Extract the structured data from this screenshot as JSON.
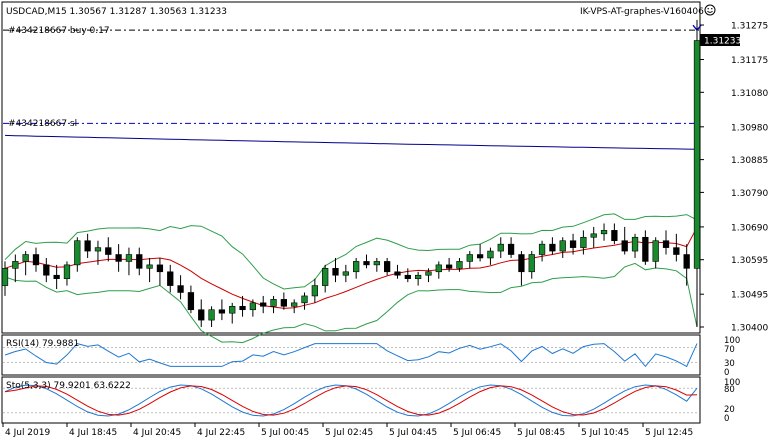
{
  "header": {
    "symbol_info": "USDCAD,M15  1.30567 1.31287 1.30563 1.31233",
    "account_label": "IK-VPS-AT-graphes-V160406",
    "smiley_icon": "smiley-icon"
  },
  "order_lines": {
    "buy_label": "#434218667 buy 0.17",
    "sl_label": "#434218667 sl",
    "buy_price": 1.3126,
    "sl_price": 1.3099,
    "line_color": "#0000cc"
  },
  "current_price": {
    "value": "1.31233",
    "tag_bg": "#000000",
    "tag_fg": "#ffffff"
  },
  "price_axis": {
    "labels": [
      "1.31275",
      "1.31175",
      "1.31080",
      "1.30980",
      "1.30885",
      "1.30790",
      "1.30690",
      "1.30595",
      "1.30495",
      "1.30400"
    ],
    "values": [
      1.31275,
      1.31175,
      1.3108,
      1.3098,
      1.30885,
      1.3079,
      1.3069,
      1.30595,
      1.30495,
      1.304
    ]
  },
  "rsi_panel": {
    "label": "RSI(14) 79.9881",
    "levels": [
      "100",
      "70",
      "30",
      "0"
    ],
    "line_color": "#1e78d2"
  },
  "stoch_panel": {
    "label": "Sto(5,3,3) 79.9201 63.6222",
    "levels": [
      "100",
      "80",
      "20",
      "0"
    ],
    "main_color": "#1e78d2",
    "signal_color": "#dd0000"
  },
  "time_axis": {
    "labels": [
      "4 Jul 2019",
      "4 Jul 18:45",
      "4 Jul 20:45",
      "4 Jul 22:45",
      "5 Jul 00:45",
      "5 Jul 02:45",
      "5 Jul 04:45",
      "5 Jul 06:45",
      "5 Jul 08:45",
      "5 Jul 10:45",
      "5 Jul 12:45"
    ]
  },
  "chart_data": {
    "type": "candlestick",
    "title": "USDCAD,M15",
    "ohlc_header": {
      "open": 1.30567,
      "high": 1.31287,
      "low": 1.30563,
      "close": 1.31233
    },
    "ylim": [
      1.3037,
      1.3133
    ],
    "candles": [
      [
        1.3052,
        1.3059,
        1.3049,
        1.3057
      ],
      [
        1.3057,
        1.3061,
        1.3053,
        1.3059
      ],
      [
        1.3059,
        1.3062,
        1.3055,
        1.3061
      ],
      [
        1.3061,
        1.3063,
        1.3056,
        1.3058
      ],
      [
        1.3058,
        1.306,
        1.3053,
        1.3055
      ],
      [
        1.3055,
        1.3058,
        1.3051,
        1.3054
      ],
      [
        1.3054,
        1.3059,
        1.3052,
        1.3058
      ],
      [
        1.3058,
        1.3066,
        1.3056,
        1.3065
      ],
      [
        1.3065,
        1.3067,
        1.306,
        1.3062
      ],
      [
        1.3062,
        1.3065,
        1.3058,
        1.3063
      ],
      [
        1.3063,
        1.3066,
        1.3059,
        1.3061
      ],
      [
        1.3061,
        1.3064,
        1.3056,
        1.3059
      ],
      [
        1.3059,
        1.3063,
        1.3055,
        1.3061
      ],
      [
        1.3061,
        1.3063,
        1.3055,
        1.3057
      ],
      [
        1.3057,
        1.306,
        1.3053,
        1.3058
      ],
      [
        1.3058,
        1.306,
        1.3052,
        1.3056
      ],
      [
        1.3056,
        1.3058,
        1.305,
        1.3052
      ],
      [
        1.3052,
        1.3055,
        1.3048,
        1.305
      ],
      [
        1.305,
        1.3052,
        1.3044,
        1.3045
      ],
      [
        1.3045,
        1.3048,
        1.304,
        1.3042
      ],
      [
        1.3042,
        1.3046,
        1.304,
        1.3045
      ],
      [
        1.3045,
        1.3048,
        1.3042,
        1.3044
      ],
      [
        1.3044,
        1.3047,
        1.3041,
        1.3046
      ],
      [
        1.3046,
        1.3049,
        1.3043,
        1.3045
      ],
      [
        1.3045,
        1.3048,
        1.3043,
        1.3047
      ],
      [
        1.3047,
        1.3049,
        1.3044,
        1.3046
      ],
      [
        1.3046,
        1.3049,
        1.3044,
        1.3048
      ],
      [
        1.3048,
        1.305,
        1.3045,
        1.3046
      ],
      [
        1.3046,
        1.3048,
        1.3044,
        1.3047
      ],
      [
        1.3047,
        1.305,
        1.3045,
        1.3049
      ],
      [
        1.3049,
        1.3054,
        1.3047,
        1.3052
      ],
      [
        1.3052,
        1.3058,
        1.305,
        1.3057
      ],
      [
        1.3057,
        1.306,
        1.3053,
        1.3055
      ],
      [
        1.3055,
        1.3058,
        1.3053,
        1.3056
      ],
      [
        1.3056,
        1.306,
        1.3054,
        1.3059
      ],
      [
        1.3059,
        1.3061,
        1.3057,
        1.3058
      ],
      [
        1.3058,
        1.306,
        1.3056,
        1.3059
      ],
      [
        1.3059,
        1.306,
        1.3055,
        1.3056
      ],
      [
        1.3056,
        1.3058,
        1.3054,
        1.3055
      ],
      [
        1.3055,
        1.3057,
        1.3053,
        1.3054
      ],
      [
        1.3054,
        1.3056,
        1.3052,
        1.3055
      ],
      [
        1.3055,
        1.3057,
        1.3053,
        1.3056
      ],
      [
        1.3056,
        1.3059,
        1.3054,
        1.3058
      ],
      [
        1.3058,
        1.306,
        1.3056,
        1.3057
      ],
      [
        1.3057,
        1.306,
        1.3056,
        1.3059
      ],
      [
        1.3059,
        1.3062,
        1.3057,
        1.3061
      ],
      [
        1.3061,
        1.3064,
        1.3059,
        1.306
      ],
      [
        1.306,
        1.3063,
        1.3058,
        1.3062
      ],
      [
        1.3062,
        1.3066,
        1.306,
        1.3064
      ],
      [
        1.3064,
        1.3066,
        1.306,
        1.3061
      ],
      [
        1.3061,
        1.3062,
        1.3052,
        1.3056
      ],
      [
        1.3056,
        1.3062,
        1.3054,
        1.3061
      ],
      [
        1.3061,
        1.3065,
        1.3059,
        1.3064
      ],
      [
        1.3064,
        1.3066,
        1.3061,
        1.3062
      ],
      [
        1.3062,
        1.3066,
        1.306,
        1.3065
      ],
      [
        1.3065,
        1.3067,
        1.3061,
        1.3063
      ],
      [
        1.3063,
        1.3068,
        1.3061,
        1.3066
      ],
      [
        1.3066,
        1.3069,
        1.3063,
        1.3067
      ],
      [
        1.3067,
        1.307,
        1.3065,
        1.3068
      ],
      [
        1.3068,
        1.307,
        1.3064,
        1.3065
      ],
      [
        1.3065,
        1.3069,
        1.3061,
        1.3062
      ],
      [
        1.3062,
        1.3067,
        1.306,
        1.3066
      ],
      [
        1.3066,
        1.3068,
        1.3058,
        1.3059
      ],
      [
        1.3059,
        1.3066,
        1.3057,
        1.3065
      ],
      [
        1.3065,
        1.3068,
        1.3061,
        1.3063
      ],
      [
        1.3063,
        1.3067,
        1.3059,
        1.3061
      ],
      [
        1.3061,
        1.3064,
        1.3052,
        1.3057
      ],
      [
        1.3057,
        1.3129,
        1.304,
        1.3123
      ]
    ],
    "overlays": [
      {
        "name": "long-ma",
        "color": "#00008b"
      },
      {
        "name": "short-ma",
        "color": "#cc0000"
      },
      {
        "name": "bands",
        "color": "#2e9e4a"
      }
    ]
  }
}
